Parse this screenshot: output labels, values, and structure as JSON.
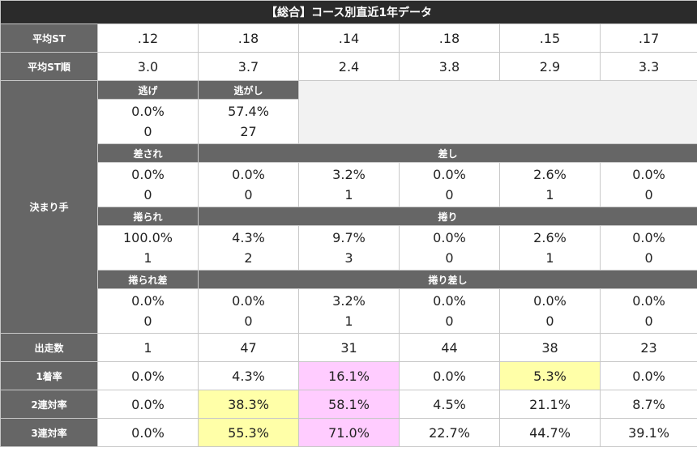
{
  "title": "【総合】コース別直近1年データ",
  "avg_st": {
    "label": "平均ST",
    "values": [
      ".12",
      ".18",
      ".14",
      ".18",
      ".15",
      ".17"
    ]
  },
  "avg_st_rank": {
    "label": "平均ST順",
    "values": [
      "3.0",
      "3.7",
      "2.4",
      "3.8",
      "2.9",
      "3.3"
    ]
  },
  "kimarite": {
    "label": "決まり手",
    "nige": {
      "label": "逃げ",
      "pct": "0.0%",
      "count": "0"
    },
    "nigashi": {
      "label": "逃がし",
      "pct": "57.4%",
      "count": "27"
    },
    "sasare": {
      "label": "差され",
      "pct": "0.0%",
      "count": "0"
    },
    "sashi": {
      "label": "差し",
      "pct": [
        "0.0%",
        "3.2%",
        "0.0%",
        "2.6%",
        "0.0%"
      ],
      "count": [
        "0",
        "1",
        "0",
        "1",
        "0"
      ]
    },
    "makurare": {
      "label": "捲られ",
      "pct": "100.0%",
      "count": "1"
    },
    "makuri": {
      "label": "捲り",
      "pct": [
        "4.3%",
        "9.7%",
        "0.0%",
        "2.6%",
        "0.0%"
      ],
      "count": [
        "2",
        "3",
        "0",
        "1",
        "0"
      ]
    },
    "makurare_sashi": {
      "label": "捲られ差",
      "pct": "0.0%",
      "count": "0"
    },
    "makuri_sashi": {
      "label": "捲り差し",
      "pct": [
        "0.0%",
        "3.2%",
        "0.0%",
        "0.0%",
        "0.0%"
      ],
      "count": [
        "0",
        "1",
        "0",
        "0",
        "0"
      ]
    }
  },
  "starts": {
    "label": "出走数",
    "values": [
      "1",
      "47",
      "31",
      "44",
      "38",
      "23"
    ]
  },
  "win_rate": {
    "label": "1着率",
    "values": [
      "0.0%",
      "4.3%",
      "16.1%",
      "0.0%",
      "5.3%",
      "0.0%"
    ]
  },
  "quinella_rate": {
    "label": "2連対率",
    "values": [
      "0.0%",
      "38.3%",
      "58.1%",
      "4.5%",
      "21.1%",
      "8.7%"
    ]
  },
  "trio_rate": {
    "label": "3連対率",
    "values": [
      "0.0%",
      "55.3%",
      "71.0%",
      "22.7%",
      "44.7%",
      "39.1%"
    ]
  },
  "colors": {
    "header_bg": "#2b2b2b",
    "label_bg": "#666666",
    "highlight_yellow": "#ffffa8",
    "highlight_pink": "#ffccff"
  }
}
